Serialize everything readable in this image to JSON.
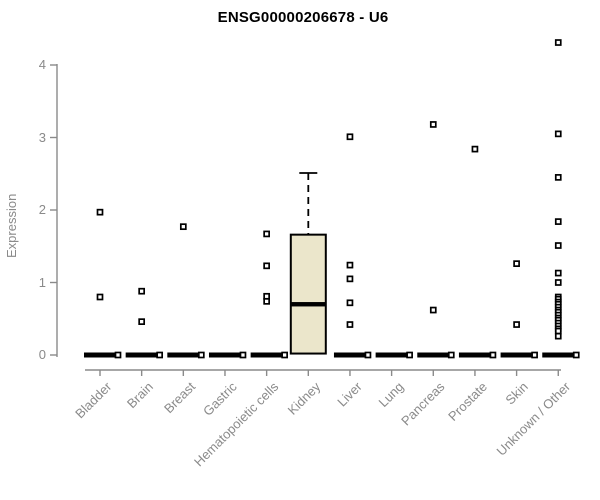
{
  "chart_data": {
    "type": "boxplot",
    "title": "ENSG00000206678 - U6",
    "ylabel": "Expression",
    "xlabel": "",
    "ylim": [
      0,
      4.35
    ],
    "yticks": [
      0,
      1,
      2,
      3,
      4
    ],
    "grid": false,
    "legend": "none",
    "categories": [
      "Bladder",
      "Brain",
      "Breast",
      "Gastric",
      "Hematopoietic cells",
      "Kidney",
      "Liver",
      "Lung",
      "Pancreas",
      "Prostate",
      "Skin",
      "Unknown / Other"
    ],
    "series": [
      {
        "category": "Bladder",
        "zero_bar": true,
        "outliers": [
          1.97,
          0.8
        ]
      },
      {
        "category": "Brain",
        "zero_bar": true,
        "outliers": [
          0.88,
          0.46
        ]
      },
      {
        "category": "Breast",
        "zero_bar": true,
        "outliers": [
          1.77
        ]
      },
      {
        "category": "Gastric",
        "zero_bar": true,
        "outliers": []
      },
      {
        "category": "Hematopoietic cells",
        "zero_bar": true,
        "outliers": [
          1.67,
          1.23,
          0.81,
          0.74
        ]
      },
      {
        "category": "Kidney",
        "zero_bar": false,
        "box": {
          "q1": 0.02,
          "median": 0.7,
          "q3": 1.66,
          "whisker_high": 2.51,
          "whisker_low": 0.02
        },
        "outliers": []
      },
      {
        "category": "Liver",
        "zero_bar": true,
        "outliers": [
          3.01,
          1.24,
          1.05,
          0.72,
          0.42
        ]
      },
      {
        "category": "Lung",
        "zero_bar": true,
        "outliers": []
      },
      {
        "category": "Pancreas",
        "zero_bar": true,
        "outliers": [
          3.18,
          0.62
        ]
      },
      {
        "category": "Prostate",
        "zero_bar": true,
        "outliers": [
          2.84
        ]
      },
      {
        "category": "Skin",
        "zero_bar": true,
        "outliers": [
          1.26,
          0.42
        ]
      },
      {
        "category": "Unknown / Other",
        "zero_bar": true,
        "outliers": [
          4.31,
          3.05,
          2.45,
          1.84,
          1.51,
          1.13,
          1.0,
          0.8,
          0.77,
          0.73,
          0.7,
          0.66,
          0.62,
          0.59,
          0.55,
          0.51,
          0.48,
          0.44,
          0.4,
          0.36,
          0.33,
          0.26
        ]
      }
    ],
    "colors": {
      "box_fill": "#EBE6CB",
      "box_border": "#000000",
      "median": "#000000",
      "point_stroke": "#000000",
      "point_fill": "#ffffff",
      "zero_bar": "#000000",
      "axis": "#8a8a8a",
      "tick_text": "#8a8a8a",
      "title_text": "#000000"
    }
  }
}
